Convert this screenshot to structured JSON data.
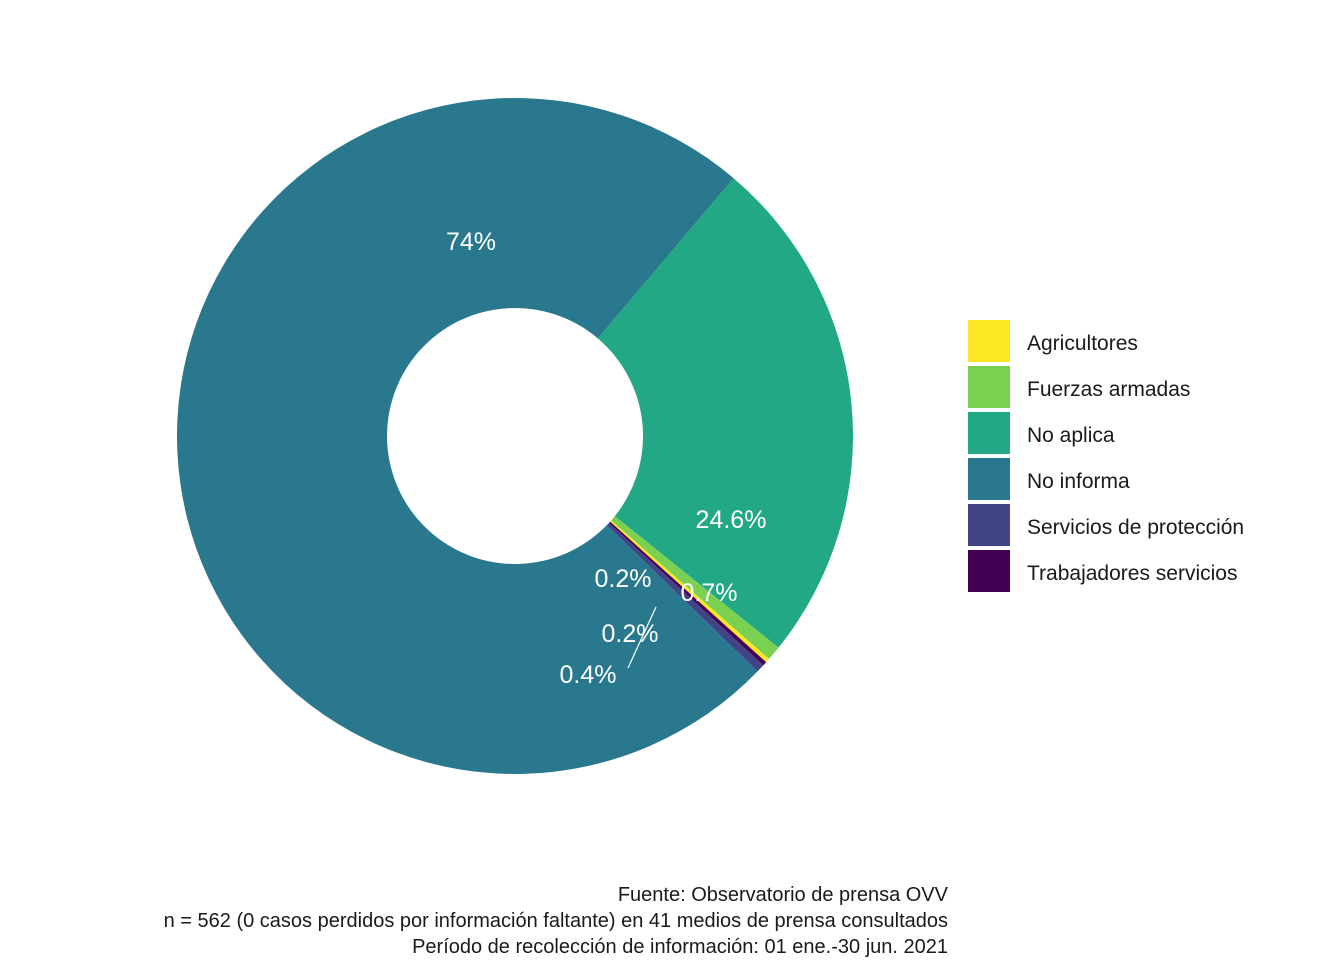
{
  "chart_data": {
    "type": "pie",
    "subtype": "donut",
    "categories": [
      "Agricultores",
      "Fuerzas armadas",
      "No aplica",
      "No informa",
      "Servicios de protección",
      "Trabajadores servicios"
    ],
    "values": [
      0.2,
      0.7,
      24.6,
      74,
      0.4,
      0.2
    ],
    "labels": [
      "0.2%",
      "0.7%",
      "24.6%",
      "74%",
      "0.4%",
      "0.2%"
    ],
    "colors": [
      "#FDE725",
      "#7AD151",
      "#22A884",
      "#2A788E",
      "#414487",
      "#440154"
    ],
    "legend": {
      "placement": "right",
      "entries": [
        "Agricultores",
        "Fuerzas armadas",
        "No aplica",
        "No informa",
        "Servicios de protección",
        "Trabajadores servicios"
      ]
    },
    "caption": [
      "Fuente: Observatorio de prensa OVV",
      "n = 562 (0 casos perdidos por información faltante) en 41 medios de prensa consultados",
      "Período de recolección de información: 01 ene.-30 jun. 2021"
    ]
  }
}
